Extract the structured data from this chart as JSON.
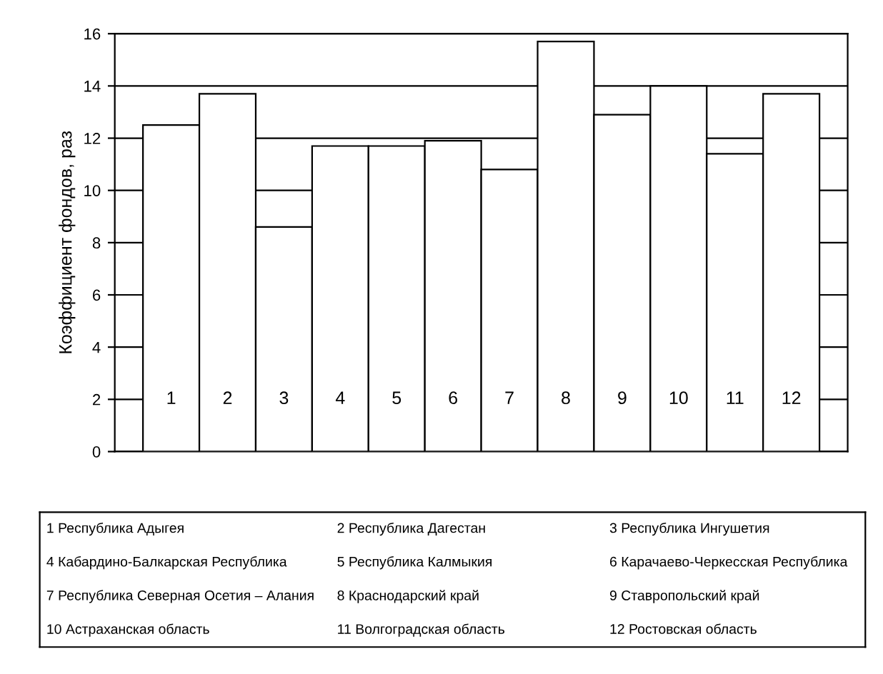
{
  "chart_data": {
    "type": "bar",
    "ylabel": "Коэффициент фондов, раз",
    "categories": [
      "1",
      "2",
      "3",
      "4",
      "5",
      "6",
      "7",
      "8",
      "9",
      "10",
      "11",
      "12"
    ],
    "values": [
      12.5,
      13.7,
      8.6,
      11.7,
      11.7,
      11.9,
      10.8,
      15.7,
      12.9,
      14.0,
      11.4,
      13.7
    ],
    "color": "#ffffff",
    "ylim": [
      0,
      16
    ],
    "yticks": [
      0,
      2,
      4,
      6,
      8,
      10,
      12,
      14,
      16
    ],
    "grid": "y",
    "annotations": [
      "1 Республика Адыгея",
      "2 Республика Дагестан",
      "3 Республика Ингушетия",
      "4 Кабардино-Балкарская Республика",
      "5 Республика Калмыкия",
      "6 Карачаево-Черкесская Республика",
      "7 Республика Северная Осетия – Алания",
      "8 Краснодарский край",
      "9 Ставропольский край",
      "10 Астраханская область",
      "11 Волгоградская область",
      "12 Ростовская область"
    ]
  }
}
